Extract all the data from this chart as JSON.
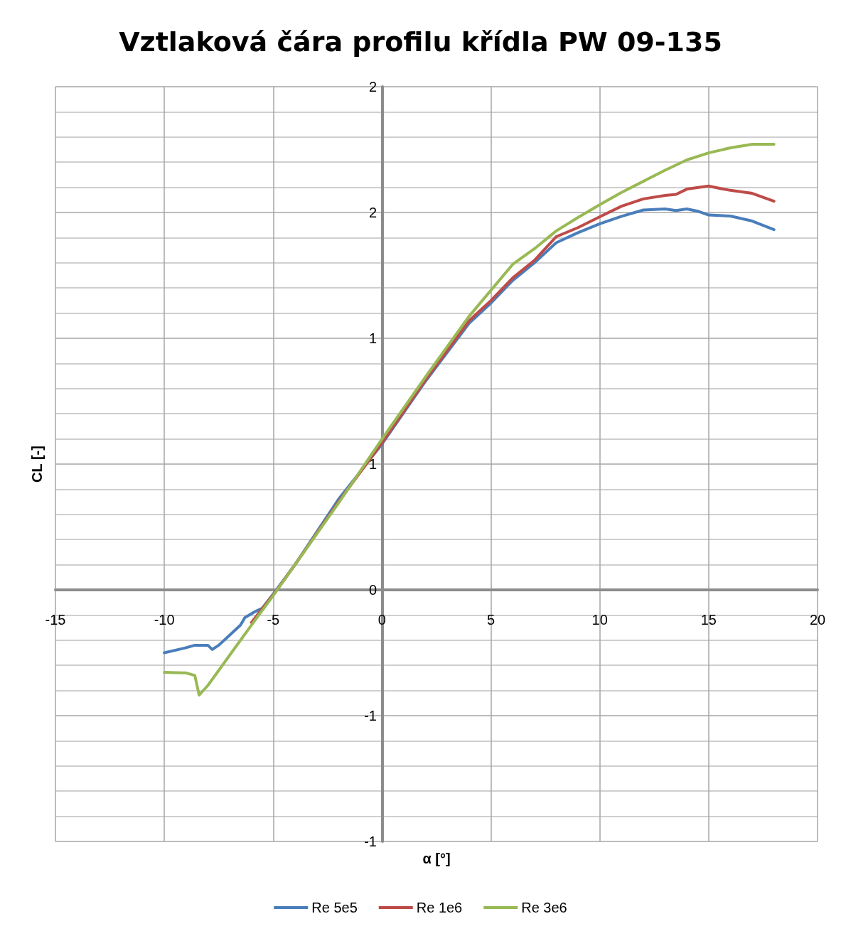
{
  "chart_data": {
    "type": "line",
    "title": "Vztlaková čára profilu křídla PW 09-135",
    "xlabel": "α [°]",
    "ylabel": "CL [-]",
    "xlim": [
      -15,
      20
    ],
    "xticks": [
      -15,
      -10,
      -5,
      0,
      5,
      10,
      15,
      20
    ],
    "ylim": [
      -1,
      2
    ],
    "yticks": [
      {
        "value": -1,
        "label": "-1"
      },
      {
        "value": -0.5,
        "label": "-1"
      },
      0,
      {
        "value": 0.5,
        "label": "1"
      },
      1,
      {
        "value": 1.5,
        "label": "2"
      },
      2
    ],
    "grid": true,
    "legend": "bottom",
    "marker": "none",
    "line_style": "solid",
    "series": [
      {
        "name": "Re 5e5",
        "color": "#4a7ebb",
        "x": [
          -10,
          -9,
          -8.6,
          -8,
          -7.8,
          -7.5,
          -7,
          -6.5,
          -6.3,
          -5.8,
          -5.5,
          -5,
          -4,
          -3,
          -2,
          -1,
          0,
          2,
          4,
          5,
          6,
          7,
          8,
          9,
          10,
          11,
          12,
          13,
          13.5,
          14,
          14.5,
          15,
          16,
          17,
          18
        ],
        "values": [
          -0.25,
          -0.23,
          -0.22,
          -0.22,
          -0.237,
          -0.22,
          -0.18,
          -0.14,
          -0.11,
          -0.085,
          -0.073,
          -0.017,
          0.1,
          0.23,
          0.36,
          0.47,
          0.58,
          0.83,
          1.06,
          1.14,
          1.23,
          1.3,
          1.38,
          1.42,
          1.455,
          1.485,
          1.51,
          1.514,
          1.508,
          1.514,
          1.505,
          1.49,
          1.486,
          1.466,
          1.432
        ]
      },
      {
        "name": "Re 1e6",
        "color": "#be4b48",
        "x": [
          -6,
          -5,
          -4,
          -2,
          0,
          2,
          4,
          5,
          6,
          7,
          8,
          9,
          10,
          11,
          12,
          13,
          13.5,
          14,
          15,
          15.5,
          16,
          17,
          18
        ],
        "values": [
          -0.13,
          -0.02,
          0.1,
          0.35,
          0.585,
          0.835,
          1.07,
          1.15,
          1.24,
          1.31,
          1.404,
          1.44,
          1.483,
          1.525,
          1.554,
          1.568,
          1.572,
          1.593,
          1.605,
          1.596,
          1.588,
          1.576,
          1.545
        ]
      },
      {
        "name": "Re 3e6",
        "color": "#98b954",
        "x": [
          -10,
          -9,
          -8.6,
          -8.4,
          -8,
          -7,
          -6,
          -5,
          -4,
          -2,
          0,
          2,
          4,
          6,
          7,
          8,
          9,
          10,
          11,
          12,
          13,
          14,
          15,
          16,
          17,
          18
        ],
        "values": [
          -0.328,
          -0.33,
          -0.34,
          -0.418,
          -0.38,
          -0.26,
          -0.14,
          -0.023,
          0.1,
          0.345,
          0.6,
          0.847,
          1.088,
          1.294,
          1.356,
          1.427,
          1.48,
          1.531,
          1.58,
          1.624,
          1.668,
          1.709,
          1.737,
          1.757,
          1.771,
          1.771
        ]
      }
    ]
  }
}
